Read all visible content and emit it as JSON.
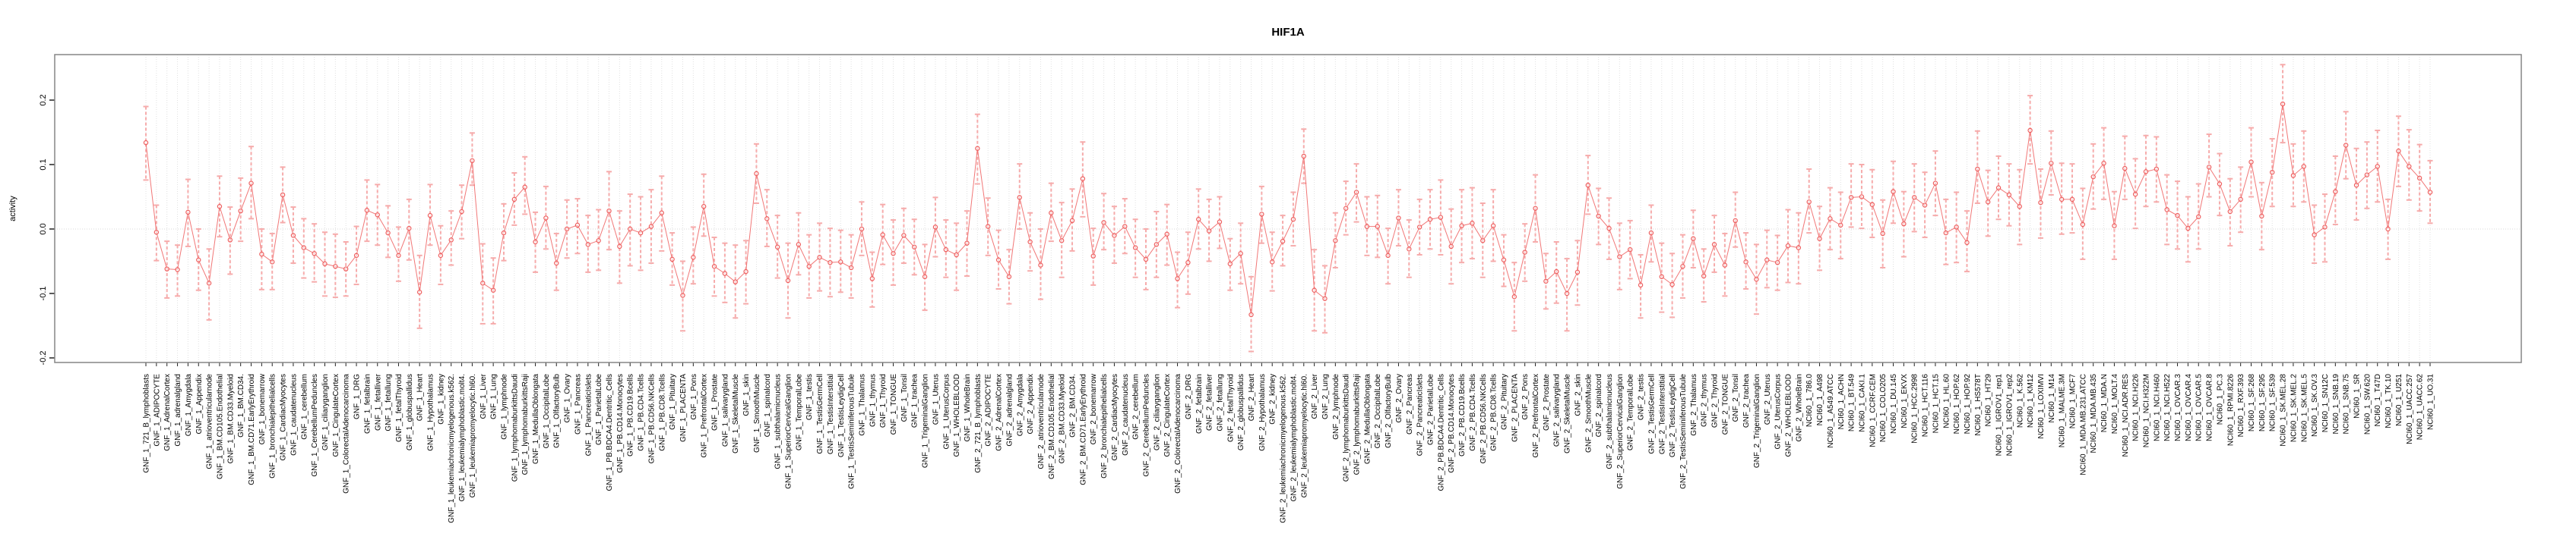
{
  "title": "HIF1A",
  "chart_data": {
    "type": "scatter",
    "subtype": "pointrange-errorbar",
    "title": "HIF1A",
    "xlabel": "",
    "ylabel": "activity",
    "ylim": [
      -0.2071,
      0.2706
    ],
    "yticks": [
      -0.2,
      -0.1,
      0.0,
      0.1,
      0.2
    ],
    "ytick_labels": [
      "-0.2",
      "-0.1",
      "0.0",
      "0.1",
      "0.2"
    ],
    "grid": "vertical dotted gridline at every category; dotted horizontal line at y=0",
    "legend_position": "none",
    "colors": {
      "point": "#ee5f5f",
      "line": "#ee5f5f",
      "errorbar": "#f6abab",
      "gridline": "#e0e0e0",
      "zero_line": "#d9d9d9",
      "box": "#858585",
      "text": "#000000",
      "background": "#ffffff"
    },
    "categories": [
      "GNF_1_721_B_lymphoblasts",
      "GNF_1_ADIPOCYTE",
      "GNF_1_AdrenalCortex",
      "GNF_1_adrenalgland",
      "GNF_1_Amygdala",
      "GNF_1_Appendix",
      "GNF_1_atrioventricularnode",
      "GNF_1_BM.CD105.Endothelial",
      "GNF_1_BM.CD33.Myeloid",
      "GNF_1_BM.CD34.",
      "GNF_1_BM.CD71.EarlyErythroid",
      "GNF_1_bonemarrow",
      "GNF_1_bronchialepithelialcells",
      "GNF_1_CardiacMyocytes",
      "GNF_1_caudatenucleus",
      "GNF_1_cerebellum",
      "GNF_1_CerebellumPeduncles",
      "GNF_1_ciliaryganglion",
      "GNF_1_CingulateCortex",
      "GNF_1_ColorectalAdenocarcinoma",
      "GNF_1_DRG",
      "GNF_1_fetalbrain",
      "GNF_1_fetalliver",
      "GNF_1_fetallung",
      "GNF_1_fetalThyroid",
      "GNF_1_globuspallidus",
      "GNF_1_Heart",
      "GNF_1_Hypothalamus",
      "GNF_1_kidney",
      "GNF_1_leukemiachronicmyelogenous.k562.",
      "GNF_1_leukemialymphoblastic.molt4.",
      "GNF_1_leukemiapromyelocytic.hl60.",
      "GNF_1_Liver",
      "GNF_1_Lung",
      "GNF_1_lymphnode",
      "GNF_1_lymphomaburkittsDaudi",
      "GNF_1_lymphomaburkittsRaji",
      "GNF_1_MedullaOblongata",
      "GNF_1_OccipitalLobe",
      "GNF_1_OlfactoryBulb",
      "GNF_1_Ovary",
      "GNF_1_Pancreas",
      "GNF_1_PancreaticIslets",
      "GNF_1_ParietalLobe",
      "GNF_1_PB.BDCA4.Dentritic_Cells",
      "GNF_1_PB.CD14.Monocytes",
      "GNF_1_PB.CD19.Bcells",
      "GNF_1_PB.CD4.Tcells",
      "GNF_1_PB.CD56.NKCells",
      "GNF_1_PB.CD8.Tcells",
      "GNF_1_Pituitary",
      "GNF_1_PLACENTA",
      "GNF_1_Pons",
      "GNF_1_PrefrontalCortex",
      "GNF_1_Prostate",
      "GNF_1_salivarygland",
      "GNF_1_SkeletalMuscle",
      "GNF_1_skin",
      "GNF_1_SmoothMuscle",
      "GNF_1_spinalcord",
      "GNF_1_subthalamicnucleus",
      "GNF_1_SuperiorCervicalGanglion",
      "GNF_1_TemporalLobe",
      "GNF_1_testis",
      "GNF_1_TestisGermCell",
      "GNF_1_TestisInterstitial",
      "GNF_1_TestisLeydigCell",
      "GNF_1_TestisSeminiferousTubule",
      "GNF_1_Thalamus",
      "GNF_1_thymus",
      "GNF_1_Thyroid",
      "GNF_1_TONGUE",
      "GNF_1_Tonsil",
      "GNF_1_trachea",
      "GNF_1_TrigeminalGanglion",
      "GNF_1_Uterus",
      "GNF_1_UterusCorpus",
      "GNF_1_WHOLEBLOOD",
      "GNF_1_WholeBrain",
      "GNF_2_721_B_lymphoblasts",
      "GNF_2_ADIPOCYTE",
      "GNF_2_AdrenalCortex",
      "GNF_2_adrenalgland",
      "GNF_2_Amygdala",
      "GNF_2_Appendix",
      "GNF_2_atrioventricularnode",
      "GNF_2_BM.CD105.Endothelial",
      "GNF_2_BM.CD33.Myeloid",
      "GNF_2_BM.CD34.",
      "GNF_2_BM.CD71.EarlyErythroid",
      "GNF_2_bonemarrow",
      "GNF_2_bronchialepithelialcells",
      "GNF_2_CardiacMyocytes",
      "GNF_2_caudatenucleus",
      "GNF_2_cerebellum",
      "GNF_2_CerebellumPeduncles",
      "GNF_2_ciliaryganglion",
      "GNF_2_CingulateCortex",
      "GNF_2_ColorectalAdenocarcinoma",
      "GNF_2_DRG",
      "GNF_2_fetalbrain",
      "GNF_2_fetalliver",
      "GNF_2_fetallung",
      "GNF_2_fetalThyroid",
      "GNF_2_globuspallidus",
      "GNF_2_Heart",
      "GNF_2_Hypothalamus",
      "GNF_2_kidney",
      "GNF_2_leukemiachronicmyelogenous.k562.",
      "GNF_2_leukemialymphoblastic.molt4.",
      "GNF_2_leukemiapromyelocytic.hl60.",
      "GNF_2_Liver",
      "GNF_2_Lung",
      "GNF_2_lymphnode",
      "GNF_2_lymphomaburkittsDaudi",
      "GNF_2_lymphomaburkittsRaji",
      "GNF_2_MedullaOblongata",
      "GNF_2_OccipitalLobe",
      "GNF_2_OlfactoryBulb",
      "GNF_2_Ovary",
      "GNF_2_Pancreas",
      "GNF_2_PancreaticIslets",
      "GNF_2_ParietalLobe",
      "GNF_2_PB.BDCA4.Dentritic_Cells",
      "GNF_2_PB.CD14.Monocytes",
      "GNF_2_PB.CD19.Bcells",
      "GNF_2_PB.CD4.Tcells",
      "GNF_2_PB.CD56.NKCells",
      "GNF_2_PB.CD8.Tcells",
      "GNF_2_Pituitary",
      "GNF_2_PLACENTA",
      "GNF_2_Pons",
      "GNF_2_PrefrontalCortex",
      "GNF_2_Prostate",
      "GNF_2_salivarygland",
      "GNF_2_SkeletalMuscle",
      "GNF_2_skin",
      "GNF_2_SmoothMuscle",
      "GNF_2_spinalcord",
      "GNF_2_subthalamicnucleus",
      "GNF_2_SuperiorCervicalGanglion",
      "GNF_2_TemporalLobe",
      "GNF_2_testis",
      "GNF_2_TestisGermCell",
      "GNF_2_TestisInterstitial",
      "GNF_2_TestisLeydigCell",
      "GNF_2_TestisSeminiferousTubule",
      "GNF_2_Thalamus",
      "GNF_2_thymus",
      "GNF_2_Thyroid",
      "GNF_2_TONGUE",
      "GNF_2_Tonsil",
      "GNF_2_trachea",
      "GNF_2_TrigeminalGanglion",
      "GNF_2_Uterus",
      "GNF_2_UterusCorpus",
      "GNF_2_WHOLEBLOOD",
      "GNF_2_WholeBrain",
      "NCI60_1_786.0",
      "NCI60_1_A498",
      "NCI60_1_A549.ATCC",
      "NCI60_1_ACHN",
      "NCI60_1_BT.549",
      "NCI60_1_CAKI.1",
      "NCI60_1_CCRF.CEM",
      "NCI60_1_COLO205",
      "NCI60_1_DU.145",
      "NCI60_1_EKVX",
      "NCI60_1_HCC.2998",
      "NCI60_1_HCT.116",
      "NCI60_1_HCT.15",
      "NCI60_1_HL.60",
      "NCI60_1_HOP.62",
      "NCI60_1_HOP.92",
      "NCI60_1_HS578T",
      "NCI60_1_HT29",
      "NCI60_1_IGROV1_rep1",
      "NCI60_1_IGROV1_rep2",
      "NCI60_1_K.562",
      "NCI60_1_KM12",
      "NCI60_1_LOXIMVI",
      "NCI60_1_M14",
      "NCI60_1_MALME.3M",
      "NCI60_1_MCF7",
      "NCI60_1_MDA.MB.231.ATCC",
      "NCI60_1_MDA.MB.435",
      "NCI60_1_MDA.N",
      "NCI60_1_MOLT.4",
      "NCI60_1_NCI.ADR.RES",
      "NCI60_1_NCI.H226",
      "NCI60_1_NCI.H322M",
      "NCI60_1_NCI.H460",
      "NCI60_1_NCI.H522",
      "NCI60_1_OVCAR.3",
      "NCI60_1_OVCAR.4",
      "NCI60_1_OVCAR.5",
      "NCI60_1_OVCAR.8",
      "NCI60_1_PC.3",
      "NCI60_1_RPMI.8226",
      "NCI60_1_RXF.393",
      "NCI60_1_SF.268",
      "NCI60_1_SF.295",
      "NCI60_1_SF.539",
      "NCI60_1_SK.MEL.28",
      "NCI60_1_SK.MEL.2",
      "NCI60_1_SK.MEL.5",
      "NCI60_1_SK.OV.3",
      "NCI60_1_SN12C",
      "NCI60_1_SNB.19",
      "NCI60_1_SNB.75",
      "NCI60_1_SR",
      "NCI60_1_SW.620",
      "NCI60_1_T47D",
      "NCI60_1_TK.10",
      "NCI60_1_U251",
      "NCI60_1_UACC.257",
      "NCI60_1_UACC.62",
      "NCI60_1_UO.31"
    ],
    "values": [
      0.134,
      -0.005,
      -0.062,
      -0.063,
      0.026,
      -0.048,
      -0.084,
      0.035,
      -0.017,
      0.028,
      0.071,
      -0.039,
      -0.051,
      0.053,
      -0.01,
      -0.029,
      -0.038,
      -0.054,
      -0.058,
      -0.062,
      -0.041,
      0.029,
      0.022,
      -0.006,
      -0.041,
      0.001,
      -0.098,
      0.021,
      -0.041,
      -0.017,
      0.027,
      0.106,
      -0.084,
      -0.095,
      -0.006,
      0.046,
      0.065,
      -0.02,
      0.017,
      -0.053,
      0.0,
      0.006,
      -0.024,
      -0.018,
      0.028,
      -0.027,
      0.0,
      -0.006,
      0.004,
      0.025,
      -0.047,
      -0.103,
      -0.044,
      0.035,
      -0.058,
      -0.069,
      -0.082,
      -0.066,
      0.086,
      0.016,
      -0.028,
      -0.08,
      -0.024,
      -0.058,
      -0.044,
      -0.052,
      -0.051,
      -0.06,
      0.0,
      -0.077,
      -0.009,
      -0.038,
      -0.01,
      -0.028,
      -0.074,
      0.003,
      -0.032,
      -0.04,
      -0.022,
      0.125,
      0.004,
      -0.048,
      -0.074,
      0.049,
      -0.02,
      -0.056,
      0.025,
      -0.018,
      0.013,
      0.078,
      -0.042,
      0.01,
      -0.01,
      0.004,
      -0.029,
      -0.047,
      -0.024,
      -0.008,
      -0.077,
      -0.052,
      0.015,
      -0.003,
      0.011,
      -0.054,
      -0.038,
      -0.133,
      0.023,
      -0.051,
      -0.019,
      0.015,
      0.113,
      -0.095,
      -0.108,
      -0.018,
      0.032,
      0.057,
      0.004,
      0.004,
      -0.041,
      0.017,
      -0.031,
      0.003,
      0.015,
      0.018,
      -0.027,
      0.005,
      0.009,
      -0.018,
      0.005,
      -0.048,
      -0.105,
      -0.036,
      0.032,
      -0.081,
      -0.066,
      -0.1,
      -0.067,
      0.068,
      0.02,
      0.001,
      -0.043,
      -0.032,
      -0.087,
      -0.006,
      -0.074,
      -0.086,
      -0.058,
      -0.015,
      -0.073,
      -0.024,
      -0.056,
      0.013,
      -0.051,
      -0.078,
      -0.048,
      -0.052,
      -0.026,
      -0.029,
      0.042,
      -0.015,
      0.016,
      0.006,
      0.049,
      0.05,
      0.038,
      -0.007,
      0.058,
      0.008,
      0.049,
      0.037,
      0.071,
      -0.006,
      0.003,
      -0.021,
      0.093,
      0.042,
      0.064,
      0.053,
      0.035,
      0.153,
      0.041,
      0.102,
      0.046,
      0.046,
      0.007,
      0.081,
      0.102,
      0.005,
      0.094,
      0.054,
      0.089,
      0.093,
      0.03,
      0.021,
      0.001,
      0.019,
      0.096,
      0.07,
      0.027,
      0.046,
      0.104,
      0.02,
      0.088,
      0.194,
      0.083,
      0.097,
      -0.009,
      0.003,
      0.058,
      0.13,
      0.068,
      0.084,
      0.097,
      0.0,
      0.121,
      0.097,
      0.079,
      0.057
    ],
    "ci_low": [
      0.076,
      -0.049,
      -0.107,
      -0.104,
      -0.027,
      -0.095,
      -0.141,
      -0.012,
      -0.07,
      -0.019,
      0.016,
      -0.094,
      -0.094,
      0.01,
      -0.053,
      -0.076,
      -0.082,
      -0.104,
      -0.106,
      -0.104,
      -0.086,
      -0.019,
      -0.025,
      -0.044,
      -0.081,
      -0.048,
      -0.154,
      -0.025,
      -0.086,
      -0.056,
      -0.015,
      0.068,
      -0.147,
      -0.147,
      -0.049,
      0.006,
      0.023,
      -0.067,
      -0.031,
      -0.095,
      -0.045,
      -0.038,
      -0.067,
      -0.064,
      -0.032,
      -0.084,
      -0.057,
      -0.064,
      -0.053,
      -0.034,
      -0.087,
      -0.158,
      -0.085,
      -0.011,
      -0.104,
      -0.114,
      -0.138,
      -0.116,
      0.04,
      -0.027,
      -0.076,
      -0.138,
      -0.071,
      -0.107,
      -0.096,
      -0.105,
      -0.098,
      -0.107,
      -0.041,
      -0.121,
      -0.055,
      -0.087,
      -0.053,
      -0.071,
      -0.126,
      -0.043,
      -0.075,
      -0.095,
      -0.073,
      0.07,
      -0.041,
      -0.093,
      -0.116,
      0.0,
      -0.065,
      -0.109,
      -0.019,
      -0.075,
      -0.034,
      0.019,
      -0.087,
      -0.032,
      -0.053,
      -0.038,
      -0.075,
      -0.094,
      -0.075,
      -0.056,
      -0.122,
      -0.101,
      -0.031,
      -0.05,
      -0.03,
      -0.095,
      -0.085,
      -0.19,
      -0.022,
      -0.096,
      -0.057,
      -0.026,
      0.071,
      -0.158,
      -0.161,
      -0.06,
      -0.009,
      0.011,
      -0.041,
      -0.044,
      -0.085,
      -0.026,
      -0.075,
      -0.04,
      -0.031,
      -0.04,
      -0.085,
      -0.052,
      -0.046,
      -0.075,
      -0.05,
      -0.089,
      -0.158,
      -0.081,
      -0.02,
      -0.124,
      -0.115,
      -0.158,
      -0.118,
      0.023,
      -0.024,
      -0.047,
      -0.094,
      -0.077,
      -0.138,
      -0.051,
      -0.129,
      -0.137,
      -0.107,
      -0.06,
      -0.113,
      -0.067,
      -0.104,
      -0.028,
      -0.093,
      -0.132,
      -0.091,
      -0.095,
      -0.083,
      -0.085,
      -0.006,
      -0.064,
      -0.032,
      -0.046,
      0.003,
      0.001,
      -0.013,
      -0.06,
      0.009,
      -0.043,
      -0.004,
      -0.013,
      0.021,
      -0.055,
      -0.052,
      -0.066,
      0.04,
      -0.011,
      0.015,
      0.005,
      -0.024,
      0.101,
      -0.014,
      0.053,
      -0.008,
      -0.006,
      -0.047,
      0.031,
      0.046,
      -0.047,
      0.046,
      0.001,
      0.035,
      0.042,
      -0.024,
      -0.031,
      -0.051,
      -0.031,
      0.05,
      0.021,
      -0.026,
      -0.005,
      0.05,
      -0.032,
      0.035,
      0.134,
      0.035,
      0.042,
      -0.053,
      -0.051,
      0.007,
      0.078,
      0.014,
      0.032,
      0.042,
      -0.047,
      0.066,
      0.045,
      0.028,
      0.009
    ],
    "ci_high": [
      0.19,
      0.037,
      -0.019,
      -0.025,
      0.077,
      0.0,
      -0.031,
      0.082,
      0.034,
      0.079,
      0.128,
      0.0,
      -0.007,
      0.096,
      0.034,
      0.016,
      0.008,
      -0.005,
      -0.008,
      -0.02,
      0.004,
      0.076,
      0.069,
      0.036,
      0.003,
      0.046,
      -0.041,
      0.069,
      0.005,
      0.028,
      0.068,
      0.149,
      -0.023,
      -0.045,
      0.039,
      0.087,
      0.112,
      0.026,
      0.066,
      -0.007,
      0.045,
      0.047,
      0.021,
      0.03,
      0.089,
      0.028,
      0.054,
      0.05,
      0.061,
      0.082,
      -0.006,
      -0.05,
      0.003,
      0.085,
      -0.013,
      -0.022,
      -0.025,
      -0.018,
      0.132,
      0.061,
      0.021,
      -0.022,
      0.025,
      -0.009,
      0.009,
      0.001,
      -0.002,
      -0.009,
      0.042,
      -0.036,
      0.038,
      0.014,
      0.032,
      0.015,
      -0.024,
      0.049,
      0.014,
      0.009,
      0.028,
      0.178,
      0.048,
      -0.002,
      -0.032,
      0.101,
      0.025,
      0.0,
      0.071,
      0.041,
      0.062,
      0.135,
      0.001,
      0.055,
      0.035,
      0.047,
      0.015,
      0.0,
      0.027,
      0.038,
      -0.036,
      -0.005,
      0.062,
      0.046,
      0.05,
      -0.015,
      0.009,
      -0.074,
      0.066,
      -0.005,
      0.021,
      0.057,
      0.155,
      -0.032,
      -0.057,
      0.025,
      0.074,
      0.101,
      0.05,
      0.052,
      0.001,
      0.061,
      0.014,
      0.046,
      0.061,
      0.076,
      0.031,
      0.061,
      0.064,
      0.04,
      0.061,
      -0.009,
      -0.052,
      0.008,
      0.084,
      -0.038,
      -0.02,
      -0.046,
      -0.018,
      0.114,
      0.063,
      0.048,
      0.009,
      0.013,
      -0.04,
      0.037,
      -0.022,
      -0.038,
      -0.009,
      0.029,
      -0.031,
      0.021,
      -0.007,
      0.057,
      -0.006,
      -0.024,
      -0.002,
      -0.01,
      0.03,
      0.025,
      0.093,
      0.035,
      0.064,
      0.057,
      0.101,
      0.1,
      0.092,
      0.045,
      0.105,
      0.058,
      0.101,
      0.088,
      0.121,
      0.046,
      0.057,
      0.028,
      0.152,
      0.091,
      0.113,
      0.101,
      0.092,
      0.207,
      0.093,
      0.152,
      0.102,
      0.101,
      0.063,
      0.132,
      0.157,
      0.058,
      0.144,
      0.109,
      0.145,
      0.143,
      0.084,
      0.074,
      0.05,
      0.07,
      0.147,
      0.117,
      0.078,
      0.096,
      0.157,
      0.072,
      0.14,
      0.255,
      0.132,
      0.152,
      0.037,
      0.054,
      0.113,
      0.182,
      0.125,
      0.135,
      0.153,
      0.046,
      0.175,
      0.154,
      0.131,
      0.106
    ]
  }
}
